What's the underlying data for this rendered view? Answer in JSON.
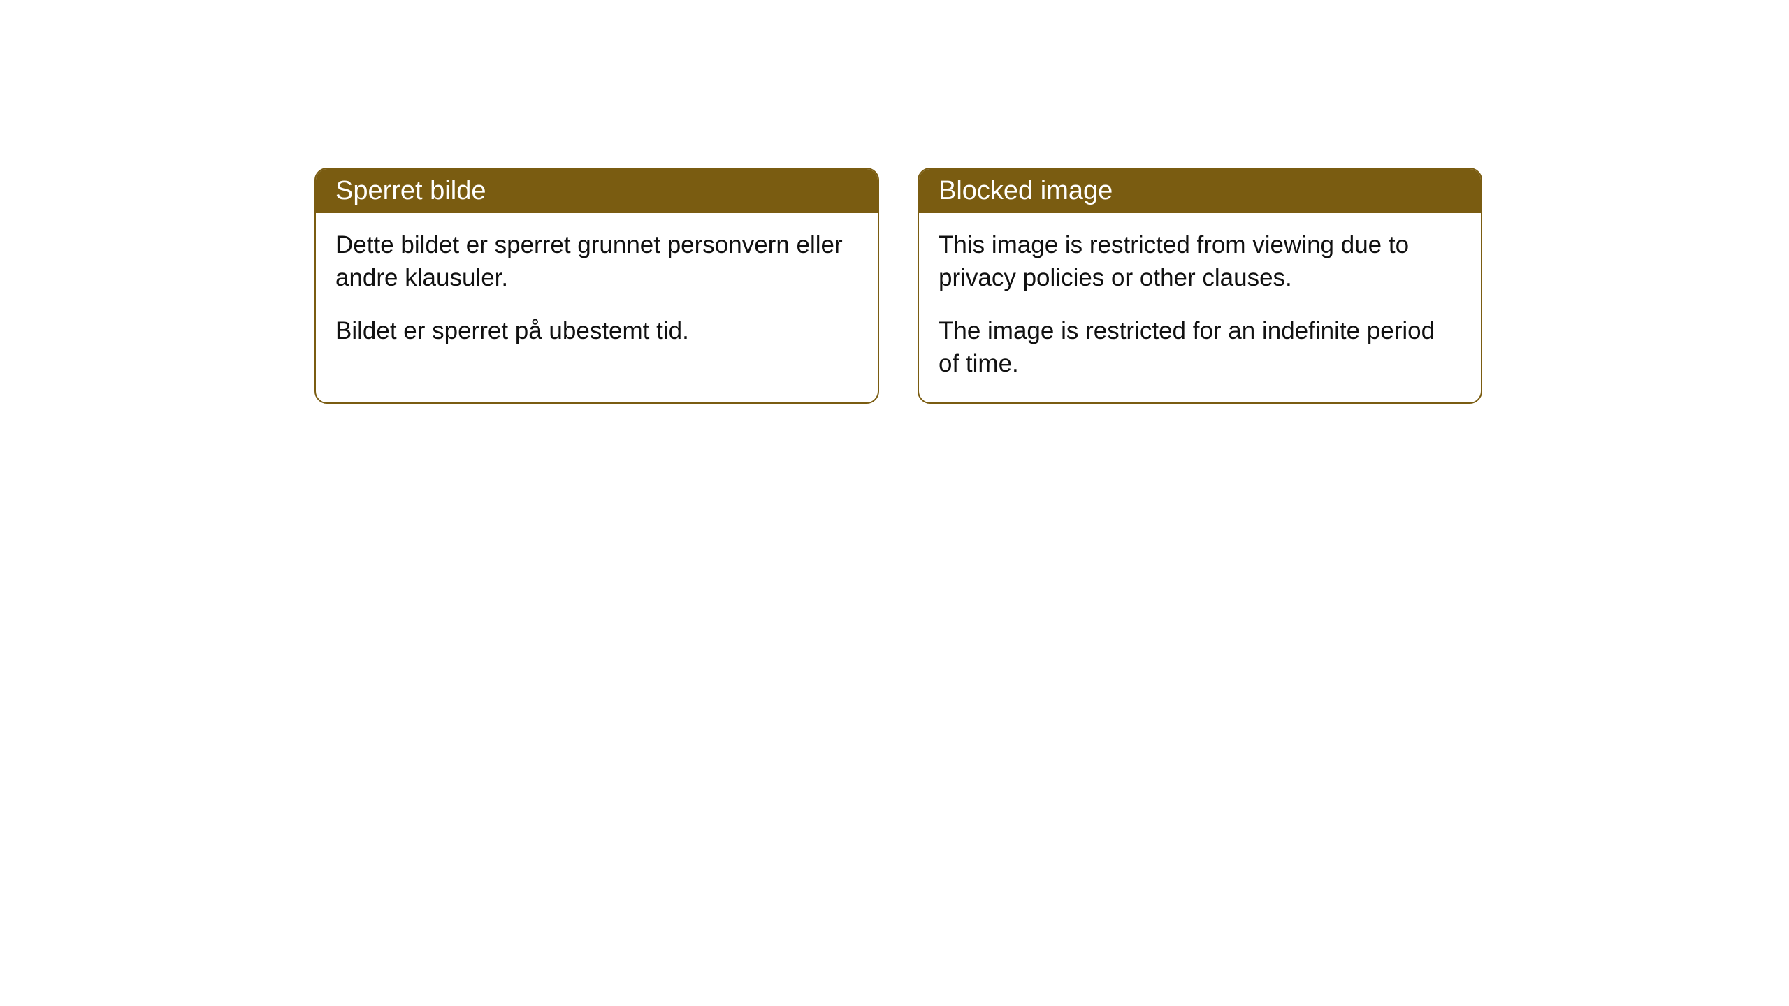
{
  "cards": [
    {
      "title": "Sperret bilde",
      "paragraph1": "Dette bildet er sperret grunnet personvern eller andre klausuler.",
      "paragraph2": "Bildet er sperret på ubestemt tid."
    },
    {
      "title": "Blocked image",
      "paragraph1": "This image is restricted from viewing due to privacy policies or other clauses.",
      "paragraph2": "The image is restricted for an indefinite period of time."
    }
  ],
  "styling": {
    "header_background_color": "#7a5c11",
    "header_text_color": "#ffffff",
    "card_border_color": "#7a5c11",
    "card_border_radius": 18,
    "card_background_color": "#ffffff",
    "body_text_color": "#111111",
    "header_fontsize": 38,
    "body_fontsize": 35,
    "page_background_color": "#ffffff"
  }
}
